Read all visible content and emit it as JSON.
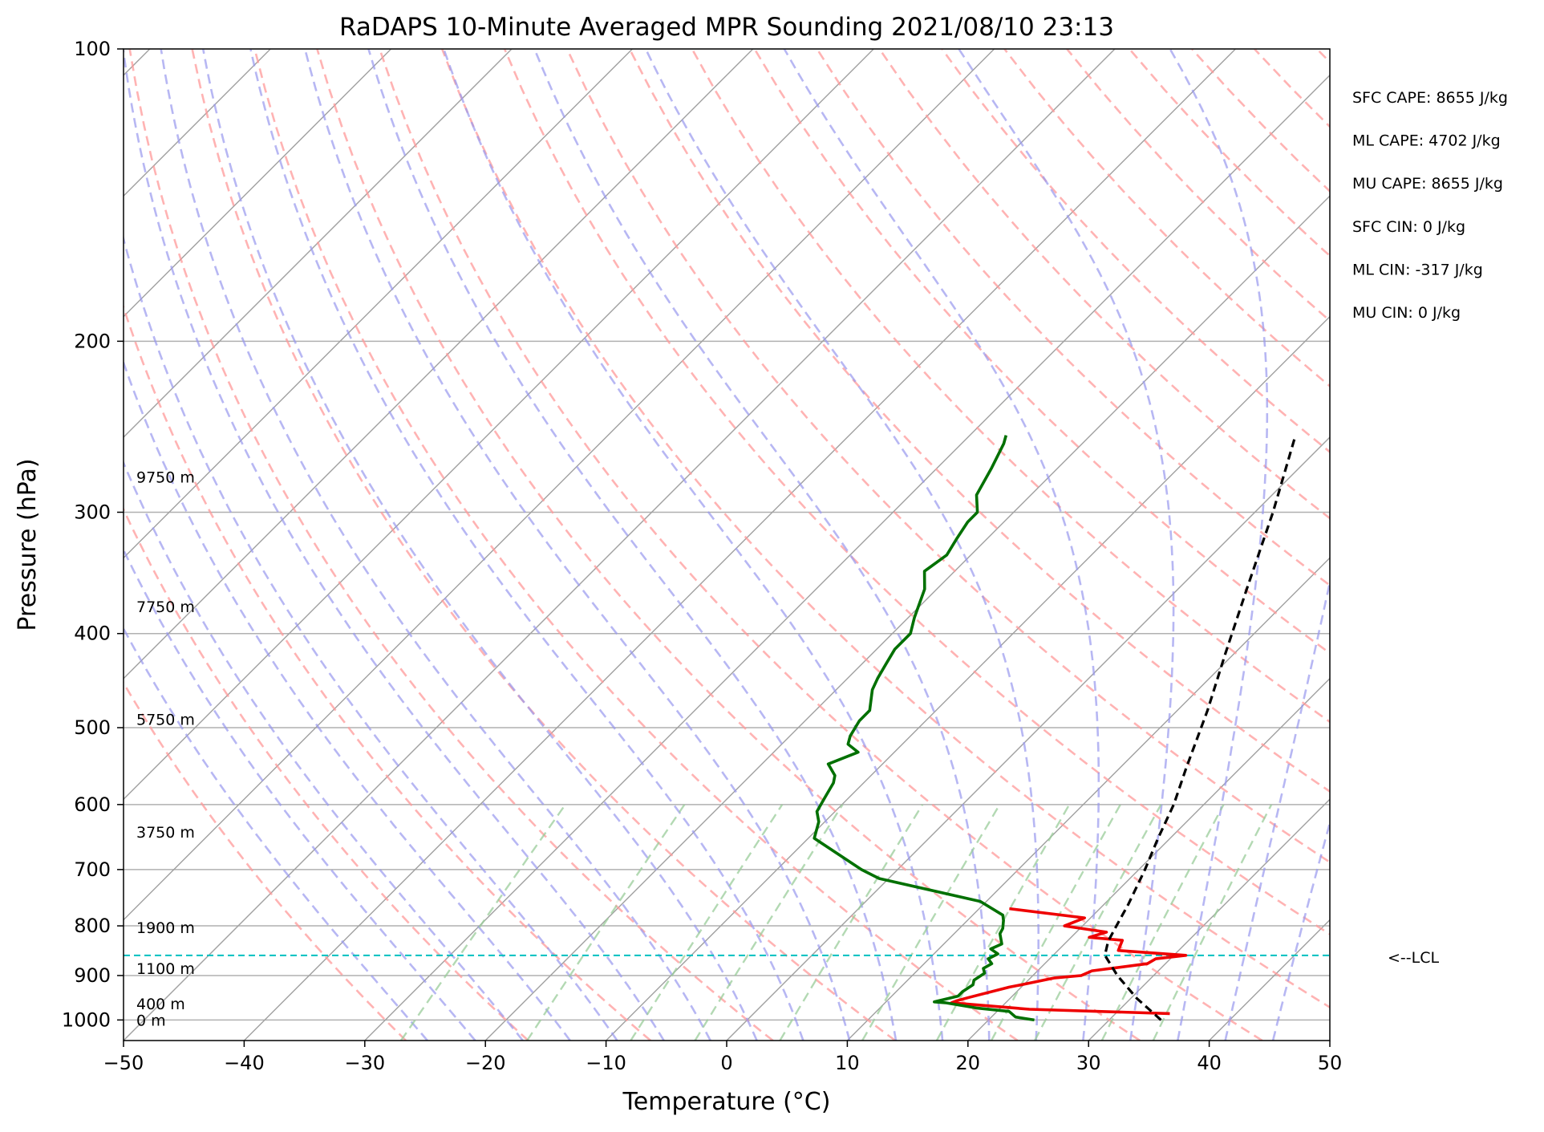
{
  "chart_data": {
    "type": "line",
    "title": "RaDAPS 10-Minute Averaged MPR Sounding 2021/08/10 23:13",
    "xlabel": "Temperature (°C)",
    "ylabel": "Pressure (hPa)",
    "xlim": [
      -50,
      50
    ],
    "ylim": [
      1050,
      100
    ],
    "y_scale": "log",
    "skew": true,
    "grid": true,
    "x_ticks": [
      -50,
      -40,
      -30,
      -20,
      -10,
      0,
      10,
      20,
      30,
      40,
      50
    ],
    "x_tick_labels": [
      "−50",
      "−40",
      "−30",
      "−20",
      "−10",
      "0",
      "10",
      "20",
      "30",
      "40",
      "50"
    ],
    "y_ticks": [
      100,
      200,
      300,
      400,
      500,
      600,
      700,
      800,
      900,
      1000
    ],
    "y_tick_labels": [
      "100",
      "200",
      "300",
      "400",
      "500",
      "600",
      "700",
      "800",
      "900",
      "1000"
    ],
    "colors": {
      "temperature": "#ee0000",
      "dewpoint": "#007000",
      "parcel": "#000000",
      "dry_adiabats": "#ff9999",
      "moist_adiabats": "#9999ee",
      "mixing_ratio": "#99cc99",
      "isotherms": "#a0a0a0",
      "lcl": "#00c0c0"
    },
    "series": [
      {
        "key": "temperature",
        "x": [
          34.5,
          22.5,
          15.5,
          15.8,
          16.5,
          19.0,
          19.8,
          22.0,
          24.0,
          24.5,
          28.5,
          28.8,
          31.0,
          25.0,
          24.5,
          21.5,
          22.5,
          18.5,
          19.5,
          12.5
        ],
        "y": [
          985,
          975,
          960,
          955,
          948,
          925,
          920,
          905,
          900,
          890,
          875,
          865,
          858,
          848,
          828,
          822,
          812,
          800,
          785,
          768
        ]
      },
      {
        "key": "dewpoint",
        "x": [
          23.8,
          22.0,
          21.0,
          18.0,
          15.0,
          14.0,
          15.5,
          15.5,
          15.8,
          15.5,
          15.8,
          15.3,
          15.6,
          14.9,
          15.3,
          14.3,
          14.8,
          13.8,
          13.6,
          13.0,
          12.5,
          9.5,
          -0.8,
          -3.0,
          -9.5,
          -10.5,
          -11.5,
          -12.0,
          -12.5,
          -13.0,
          -13.0,
          -14.5,
          -13.0,
          -14.5,
          -15.0,
          -15.5,
          -15.5,
          -17.0,
          -17.5,
          -18.0,
          -18.5,
          -18.5,
          -19.5,
          -21.0,
          -22.5,
          -22.0,
          -22.5,
          -23.0,
          -23.0,
          -24.5,
          -25.5,
          -26.5,
          -27.0
        ],
        "y": [
          1000,
          993,
          980,
          972,
          960,
          958,
          945,
          935,
          920,
          910,
          895,
          885,
          875,
          865,
          855,
          845,
          835,
          815,
          805,
          790,
          780,
          755,
          715,
          700,
          650,
          625,
          610,
          590,
          570,
          560,
          560,
          545,
          530,
          520,
          510,
          492,
          480,
          457,
          445,
          430,
          415,
          400,
          385,
          360,
          345,
          332,
          320,
          307,
          300,
          288,
          270,
          255,
          250
        ]
      },
      {
        "key": "parcel",
        "x": [
          34.3,
          30.5,
          27.0,
          24.3,
          23.4,
          22.8,
          22.0,
          20.5,
          19.0,
          17.5,
          15.5,
          12.5,
          9.3,
          5.7,
          1.5,
          -3.0
        ],
        "y": [
          1000,
          950,
          900,
          858,
          830,
          800,
          760,
          700,
          650,
          600,
          550,
          480,
          420,
          360,
          300,
          250
        ]
      }
    ],
    "lcl": {
      "pressure": 858,
      "label": "<--LCL"
    },
    "height_labels": [
      {
        "text": "0 m",
        "pressure": 1000
      },
      {
        "text": "400 m",
        "pressure": 962
      },
      {
        "text": "1100 m",
        "pressure": 885
      },
      {
        "text": "1900 m",
        "pressure": 803
      },
      {
        "text": "3750 m",
        "pressure": 640
      },
      {
        "text": "5750 m",
        "pressure": 490
      },
      {
        "text": "7750 m",
        "pressure": 375
      },
      {
        "text": "9750 m",
        "pressure": 276
      }
    ],
    "annotations": [
      "SFC CAPE: 8655 J/kg",
      "ML CAPE: 4702 J/kg",
      "MU CAPE: 8655 J/kg",
      "SFC CIN: 0 J/kg",
      "ML CIN: -317 J/kg",
      "MU CIN: 0 J/kg"
    ]
  }
}
